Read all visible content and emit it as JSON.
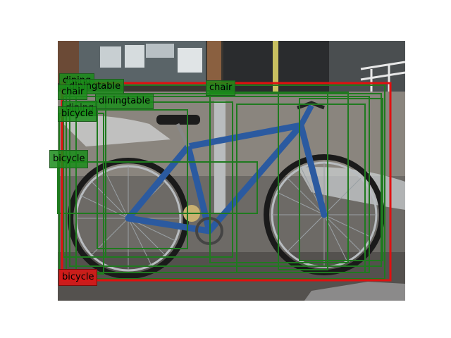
{
  "image": {
    "description_free": true
  },
  "colors": {
    "box_green": "#1f7a1f",
    "box_red": "#e01010",
    "label_green": "#2e9a2e",
    "label_red": "#d81818"
  },
  "labels": {
    "l1": "dining",
    "l2": "diningtable",
    "l3": "chair",
    "l4": "diningtable",
    "l5": "chair",
    "l6": "dining",
    "l7": "bicycle",
    "l8": "bicycle",
    "l9": "bicycle"
  }
}
